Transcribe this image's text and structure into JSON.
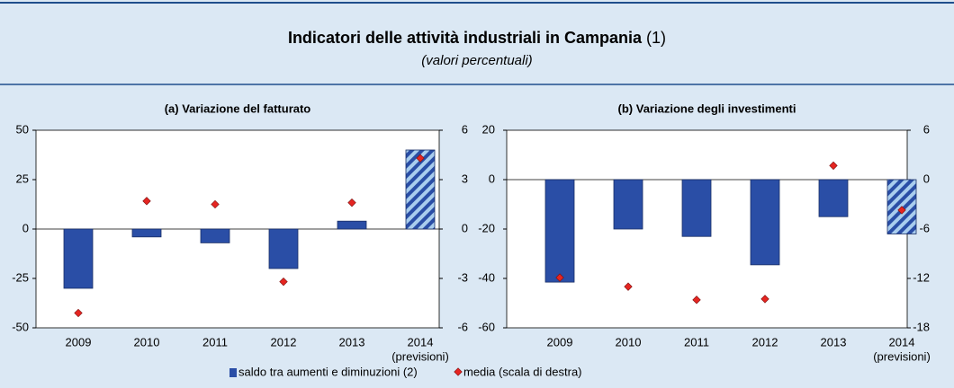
{
  "header": {
    "title": "Indicatori delle attività industriali in Campania",
    "title_note": "(1)",
    "subtitle": "(valori percentuali)"
  },
  "legend": [
    "saldo tra aumenti e diminuzioni (2)",
    "media  (scala di destra)"
  ],
  "chart_data": [
    {
      "type": "bar",
      "title": "(a) Variazione del fatturato",
      "categories": [
        "2009",
        "2010",
        "2011",
        "2012",
        "2013",
        "2014"
      ],
      "note": "(previsioni)",
      "hatched": [
        5
      ],
      "series": [
        {
          "color": "#2a4ea6",
          "values": [
            -30,
            -4,
            -7,
            -20,
            4,
            40
          ]
        },
        {
          "color": "#e52521",
          "axis": "y2",
          "values": [
            -5.1,
            1.7,
            1.5,
            -3.2,
            1.6,
            4.3
          ]
        }
      ],
      "ylim": [
        -50,
        50
      ],
      "yticks": [
        -50,
        -25,
        0,
        25,
        50
      ],
      "y2lim": [
        -6,
        6
      ],
      "y2ticks": [
        -6,
        -3,
        0,
        3,
        6
      ]
    },
    {
      "type": "bar",
      "title": "(b) Variazione degli investimenti",
      "categories": [
        "2009",
        "2010",
        "2011",
        "2012",
        "2013",
        "2014"
      ],
      "note": "(previsioni)",
      "hatched": [
        5
      ],
      "series": [
        {
          "color": "#2a4ea6",
          "values": [
            -41.5,
            -20,
            -23,
            -34.5,
            -15,
            -22
          ]
        },
        {
          "color": "#e52521",
          "axis": "y2",
          "values": [
            -11.9,
            -13,
            -14.6,
            -14.5,
            1.7,
            -3.7
          ]
        }
      ],
      "ylim": [
        -60,
        20
      ],
      "yticks": [
        -60,
        -40,
        -20,
        0,
        20
      ],
      "y2lim": [
        -18,
        6
      ],
      "y2ticks": [
        -18,
        -12,
        -6,
        0,
        6
      ]
    }
  ]
}
